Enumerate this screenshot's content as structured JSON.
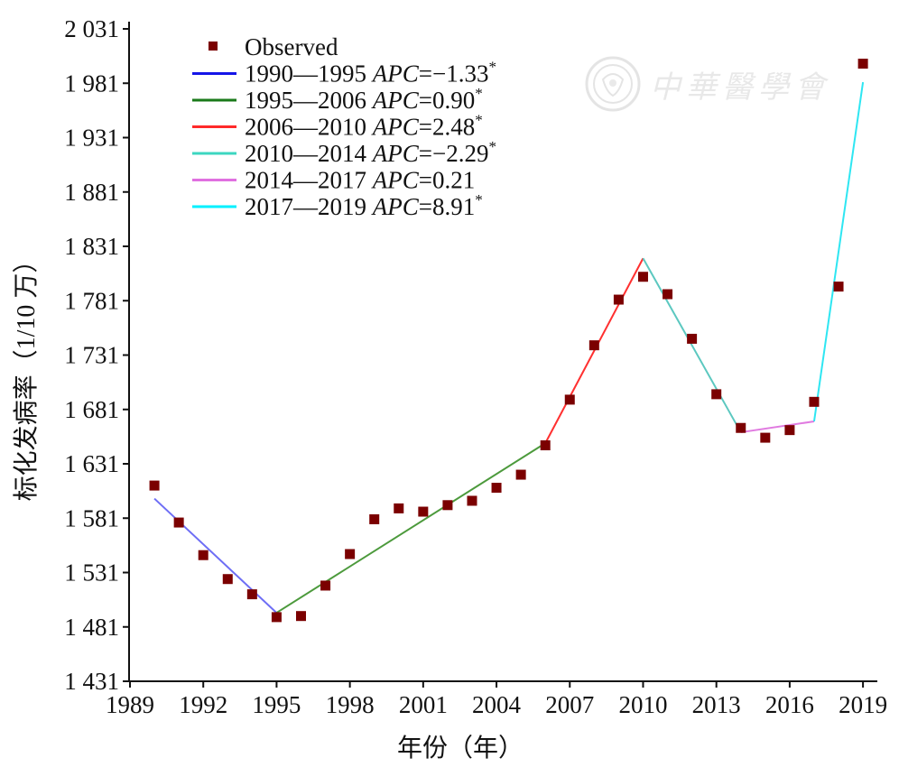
{
  "chart_data": {
    "type": "scatter",
    "xlabel": "年份（年）",
    "ylabel": "标化发病率（1/10 万）",
    "xlim": [
      1989,
      2019.3
    ],
    "ylim": [
      1431,
      2031
    ],
    "xticks": [
      1989,
      1992,
      1995,
      1998,
      2001,
      2004,
      2007,
      2010,
      2013,
      2016,
      2019
    ],
    "yticks": [
      1431,
      1481,
      1531,
      1581,
      1631,
      1681,
      1731,
      1781,
      1831,
      1881,
      1931,
      1981,
      2031
    ],
    "ytick_labels": [
      "1 431",
      "1 481",
      "1 531",
      "1 581",
      "1 631",
      "1 681",
      "1 731",
      "1 781",
      "1 831",
      "1 881",
      "1 931",
      "1 981",
      "2 031"
    ],
    "grid": false,
    "legend_position": "top-left",
    "observed": {
      "name": "Observed",
      "color": "#7b0000",
      "x": [
        1990,
        1991,
        1992,
        1993,
        1994,
        1995,
        1996,
        1997,
        1998,
        1999,
        2000,
        2001,
        2002,
        2003,
        2004,
        2005,
        2006,
        2007,
        2008,
        2009,
        2010,
        2011,
        2012,
        2013,
        2014,
        2015,
        2016,
        2017,
        2018,
        2019
      ],
      "y": [
        1611,
        1577,
        1547,
        1525,
        1511,
        1490,
        1491,
        1519,
        1548,
        1580,
        1590,
        1587,
        1593,
        1597,
        1609,
        1621,
        1648,
        1690,
        1740,
        1782,
        1803,
        1787,
        1746,
        1695,
        1664,
        1655,
        1662,
        1688,
        1794,
        1999
      ]
    },
    "segments": [
      {
        "name_years": "1990—1995",
        "apc": "−1.33",
        "sig": "*",
        "color": "#1515e8",
        "draw_color": "#6e6ef5",
        "x": [
          1990,
          1995
        ],
        "y": [
          1599,
          1494
        ]
      },
      {
        "name_years": "1995—2006",
        "apc": "0.90",
        "sig": "*",
        "color": "#1a7a1a",
        "draw_color": "#4c9a3c",
        "x": [
          1995,
          2006
        ],
        "y": [
          1494,
          1650
        ]
      },
      {
        "name_years": "2006—2010",
        "apc": "2.48",
        "sig": "*",
        "color": "#ff2a2a",
        "draw_color": "#ff3030",
        "x": [
          2006,
          2010
        ],
        "y": [
          1650,
          1820
        ]
      },
      {
        "name_years": "2010—2014",
        "apc": "−2.29",
        "sig": "*",
        "color": "#3cd6c0",
        "draw_color": "#5cc8c0",
        "x": [
          2010,
          2014
        ],
        "y": [
          1820,
          1660
        ]
      },
      {
        "name_years": "2014—2017",
        "apc": "0.21",
        "sig": "",
        "color": "#e070e0",
        "draw_color": "#e07ae0",
        "x": [
          2014,
          2017
        ],
        "y": [
          1660,
          1670
        ]
      },
      {
        "name_years": "2017—2019",
        "apc": "8.91",
        "sig": "*",
        "color": "#00f0ff",
        "draw_color": "#2ee6f2",
        "x": [
          2017,
          2019
        ],
        "y": [
          1670,
          1982
        ]
      }
    ],
    "apc_prefix": "APC="
  },
  "watermark": {
    "text": "中華醫學會"
  }
}
